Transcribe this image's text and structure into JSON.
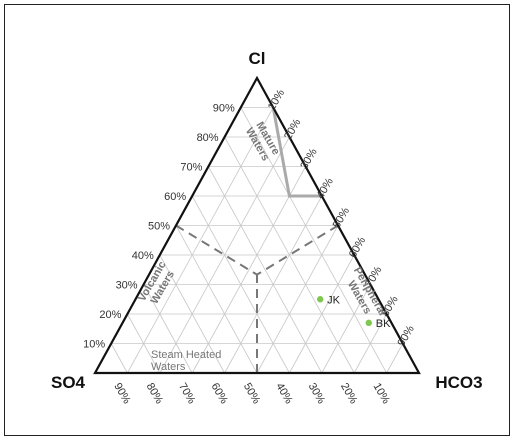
{
  "chart_data": {
    "type": "ternary",
    "vertices": {
      "top": "Cl",
      "left": "SO4",
      "right": "HCO3"
    },
    "ticks": {
      "left_edge": [
        "10%",
        "20%",
        "30%",
        "40%",
        "50%",
        "60%",
        "70%",
        "80%",
        "90%"
      ],
      "right_edge": [
        "10%",
        "20%",
        "30%",
        "40%",
        "50%",
        "60%",
        "70%",
        "80%",
        "90%"
      ],
      "bottom_edge": [
        "90%",
        "80%",
        "70%",
        "60%",
        "50%",
        "40%",
        "30%",
        "20%",
        "10%"
      ]
    },
    "grid": true,
    "regions": [
      {
        "key": "mature",
        "label": "Mature Waters"
      },
      {
        "key": "volcanic",
        "label": "Volcanic Waters"
      },
      {
        "key": "peripheral",
        "label": "Peripheral Waters"
      },
      {
        "key": "steam",
        "label": "Steam Heated Waters"
      }
    ],
    "points": [
      {
        "label": "JK",
        "Cl": 25,
        "SO4": 18,
        "HCO3": 57,
        "color": "#7ec850"
      },
      {
        "label": "BK",
        "Cl": 17,
        "SO4": 7,
        "HCO3": 76,
        "color": "#7ec850"
      }
    ]
  }
}
